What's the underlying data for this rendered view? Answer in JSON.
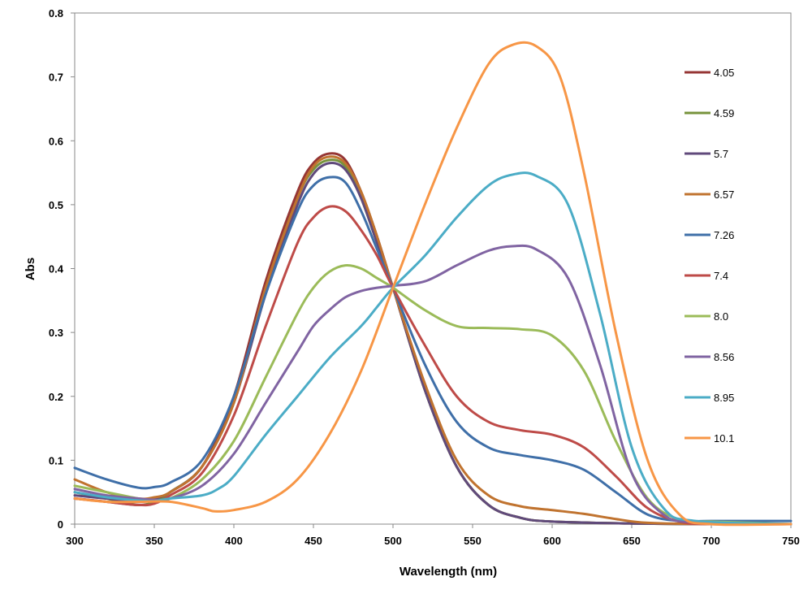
{
  "chart_data": {
    "type": "line",
    "xlabel": "Wavelength (nm)",
    "ylabel": "Abs",
    "xlim": [
      300,
      750
    ],
    "ylim": [
      0,
      0.8
    ],
    "x_ticks": [
      "300",
      "350",
      "400",
      "450",
      "500",
      "550",
      "600",
      "650",
      "700",
      "750"
    ],
    "y_ticks": [
      "0",
      "0.1",
      "0.2",
      "0.3",
      "0.4",
      "0.5",
      "0.6",
      "0.7",
      "0.8"
    ],
    "grid": false,
    "legend_position": "right",
    "series": [
      {
        "name": "4.05",
        "color": "#963634",
        "points": [
          [
            300,
            0.04
          ],
          [
            320,
            0.035
          ],
          [
            340,
            0.03
          ],
          [
            350,
            0.035
          ],
          [
            360,
            0.05
          ],
          [
            380,
            0.09
          ],
          [
            400,
            0.2
          ],
          [
            420,
            0.38
          ],
          [
            440,
            0.52
          ],
          [
            450,
            0.565
          ],
          [
            460,
            0.58
          ],
          [
            470,
            0.57
          ],
          [
            480,
            0.52
          ],
          [
            490,
            0.45
          ],
          [
            500,
            0.37
          ],
          [
            520,
            0.21
          ],
          [
            540,
            0.09
          ],
          [
            560,
            0.03
          ],
          [
            580,
            0.01
          ],
          [
            600,
            0.004
          ],
          [
            650,
            0.001
          ],
          [
            700,
            0.0
          ],
          [
            750,
            0.0
          ]
        ]
      },
      {
        "name": "4.59",
        "color": "#77933C",
        "points": [
          [
            300,
            0.05
          ],
          [
            320,
            0.04
          ],
          [
            340,
            0.03
          ],
          [
            350,
            0.035
          ],
          [
            360,
            0.05
          ],
          [
            380,
            0.09
          ],
          [
            400,
            0.19
          ],
          [
            420,
            0.37
          ],
          [
            440,
            0.51
          ],
          [
            450,
            0.555
          ],
          [
            460,
            0.57
          ],
          [
            470,
            0.56
          ],
          [
            480,
            0.51
          ],
          [
            490,
            0.44
          ],
          [
            500,
            0.37
          ],
          [
            520,
            0.21
          ],
          [
            540,
            0.09
          ],
          [
            560,
            0.03
          ],
          [
            580,
            0.01
          ],
          [
            600,
            0.004
          ],
          [
            650,
            0.001
          ],
          [
            700,
            0.0
          ],
          [
            750,
            0.0
          ]
        ]
      },
      {
        "name": "5.7",
        "color": "#604A7B",
        "points": [
          [
            300,
            0.045
          ],
          [
            320,
            0.04
          ],
          [
            340,
            0.035
          ],
          [
            350,
            0.04
          ],
          [
            360,
            0.05
          ],
          [
            380,
            0.09
          ],
          [
            400,
            0.19
          ],
          [
            420,
            0.36
          ],
          [
            440,
            0.5
          ],
          [
            450,
            0.548
          ],
          [
            460,
            0.565
          ],
          [
            470,
            0.555
          ],
          [
            480,
            0.51
          ],
          [
            490,
            0.44
          ],
          [
            500,
            0.37
          ],
          [
            520,
            0.21
          ],
          [
            540,
            0.09
          ],
          [
            560,
            0.03
          ],
          [
            580,
            0.01
          ],
          [
            600,
            0.004
          ],
          [
            650,
            0.001
          ],
          [
            700,
            0.0
          ],
          [
            750,
            0.0
          ]
        ]
      },
      {
        "name": "6.57",
        "color": "#C0732F",
        "points": [
          [
            300,
            0.07
          ],
          [
            320,
            0.05
          ],
          [
            340,
            0.04
          ],
          [
            350,
            0.042
          ],
          [
            360,
            0.05
          ],
          [
            380,
            0.09
          ],
          [
            400,
            0.19
          ],
          [
            420,
            0.37
          ],
          [
            440,
            0.51
          ],
          [
            450,
            0.56
          ],
          [
            460,
            0.575
          ],
          [
            470,
            0.565
          ],
          [
            480,
            0.52
          ],
          [
            490,
            0.45
          ],
          [
            500,
            0.37
          ],
          [
            520,
            0.22
          ],
          [
            540,
            0.1
          ],
          [
            560,
            0.045
          ],
          [
            580,
            0.028
          ],
          [
            600,
            0.022
          ],
          [
            620,
            0.016
          ],
          [
            640,
            0.008
          ],
          [
            660,
            0.002
          ],
          [
            700,
            0.0
          ],
          [
            750,
            0.0
          ]
        ]
      },
      {
        "name": "7.26",
        "color": "#3F6FA8",
        "points": [
          [
            300,
            0.088
          ],
          [
            320,
            0.07
          ],
          [
            340,
            0.057
          ],
          [
            350,
            0.058
          ],
          [
            360,
            0.065
          ],
          [
            380,
            0.1
          ],
          [
            400,
            0.2
          ],
          [
            420,
            0.36
          ],
          [
            440,
            0.49
          ],
          [
            450,
            0.53
          ],
          [
            460,
            0.543
          ],
          [
            470,
            0.535
          ],
          [
            480,
            0.49
          ],
          [
            490,
            0.43
          ],
          [
            500,
            0.37
          ],
          [
            520,
            0.25
          ],
          [
            540,
            0.16
          ],
          [
            560,
            0.12
          ],
          [
            580,
            0.108
          ],
          [
            600,
            0.1
          ],
          [
            620,
            0.085
          ],
          [
            640,
            0.05
          ],
          [
            660,
            0.015
          ],
          [
            680,
            0.005
          ],
          [
            700,
            0.005
          ],
          [
            750,
            0.005
          ]
        ]
      },
      {
        "name": "7.4",
        "color": "#BE4B48",
        "points": [
          [
            300,
            0.04
          ],
          [
            320,
            0.035
          ],
          [
            340,
            0.03
          ],
          [
            350,
            0.032
          ],
          [
            360,
            0.045
          ],
          [
            380,
            0.08
          ],
          [
            400,
            0.17
          ],
          [
            420,
            0.31
          ],
          [
            440,
            0.44
          ],
          [
            450,
            0.48
          ],
          [
            460,
            0.497
          ],
          [
            470,
            0.49
          ],
          [
            480,
            0.46
          ],
          [
            490,
            0.42
          ],
          [
            500,
            0.37
          ],
          [
            520,
            0.28
          ],
          [
            540,
            0.2
          ],
          [
            560,
            0.16
          ],
          [
            580,
            0.147
          ],
          [
            600,
            0.14
          ],
          [
            620,
            0.12
          ],
          [
            640,
            0.075
          ],
          [
            660,
            0.025
          ],
          [
            680,
            0.004
          ],
          [
            700,
            0.0
          ],
          [
            750,
            0.0
          ]
        ]
      },
      {
        "name": "8.0",
        "color": "#9BBB59",
        "points": [
          [
            300,
            0.06
          ],
          [
            320,
            0.05
          ],
          [
            340,
            0.04
          ],
          [
            350,
            0.037
          ],
          [
            360,
            0.04
          ],
          [
            380,
            0.07
          ],
          [
            400,
            0.13
          ],
          [
            420,
            0.23
          ],
          [
            440,
            0.33
          ],
          [
            450,
            0.37
          ],
          [
            460,
            0.395
          ],
          [
            470,
            0.405
          ],
          [
            480,
            0.4
          ],
          [
            490,
            0.385
          ],
          [
            500,
            0.37
          ],
          [
            520,
            0.335
          ],
          [
            540,
            0.31
          ],
          [
            560,
            0.307
          ],
          [
            580,
            0.305
          ],
          [
            600,
            0.295
          ],
          [
            620,
            0.24
          ],
          [
            640,
            0.13
          ],
          [
            660,
            0.04
          ],
          [
            680,
            0.007
          ],
          [
            700,
            0.004
          ],
          [
            750,
            0.0
          ]
        ]
      },
      {
        "name": "8.56",
        "color": "#8064A2",
        "points": [
          [
            300,
            0.055
          ],
          [
            320,
            0.045
          ],
          [
            340,
            0.04
          ],
          [
            350,
            0.038
          ],
          [
            360,
            0.04
          ],
          [
            380,
            0.06
          ],
          [
            400,
            0.11
          ],
          [
            420,
            0.19
          ],
          [
            440,
            0.27
          ],
          [
            450,
            0.31
          ],
          [
            460,
            0.335
          ],
          [
            470,
            0.355
          ],
          [
            480,
            0.365
          ],
          [
            490,
            0.37
          ],
          [
            500,
            0.373
          ],
          [
            520,
            0.38
          ],
          [
            540,
            0.405
          ],
          [
            560,
            0.428
          ],
          [
            575,
            0.435
          ],
          [
            590,
            0.43
          ],
          [
            610,
            0.385
          ],
          [
            630,
            0.25
          ],
          [
            650,
            0.08
          ],
          [
            670,
            0.015
          ],
          [
            690,
            0.003
          ],
          [
            750,
            0.0
          ]
        ]
      },
      {
        "name": "8.95",
        "color": "#4BACC6",
        "points": [
          [
            300,
            0.05
          ],
          [
            320,
            0.042
          ],
          [
            340,
            0.037
          ],
          [
            350,
            0.036
          ],
          [
            360,
            0.04
          ],
          [
            380,
            0.045
          ],
          [
            390,
            0.055
          ],
          [
            400,
            0.075
          ],
          [
            420,
            0.14
          ],
          [
            440,
            0.2
          ],
          [
            460,
            0.26
          ],
          [
            480,
            0.31
          ],
          [
            490,
            0.34
          ],
          [
            500,
            0.37
          ],
          [
            520,
            0.42
          ],
          [
            540,
            0.48
          ],
          [
            560,
            0.53
          ],
          [
            575,
            0.547
          ],
          [
            590,
            0.545
          ],
          [
            610,
            0.5
          ],
          [
            630,
            0.33
          ],
          [
            650,
            0.12
          ],
          [
            670,
            0.025
          ],
          [
            690,
            0.005
          ],
          [
            750,
            0.0
          ]
        ]
      },
      {
        "name": "10.1",
        "color": "#F79646",
        "points": [
          [
            300,
            0.04
          ],
          [
            320,
            0.035
          ],
          [
            340,
            0.035
          ],
          [
            360,
            0.035
          ],
          [
            380,
            0.025
          ],
          [
            388,
            0.02
          ],
          [
            400,
            0.022
          ],
          [
            420,
            0.035
          ],
          [
            440,
            0.07
          ],
          [
            460,
            0.14
          ],
          [
            480,
            0.24
          ],
          [
            500,
            0.37
          ],
          [
            520,
            0.5
          ],
          [
            540,
            0.62
          ],
          [
            560,
            0.72
          ],
          [
            575,
            0.75
          ],
          [
            590,
            0.748
          ],
          [
            605,
            0.7
          ],
          [
            620,
            0.55
          ],
          [
            640,
            0.3
          ],
          [
            660,
            0.1
          ],
          [
            680,
            0.015
          ],
          [
            700,
            0.0
          ],
          [
            750,
            0.0
          ]
        ]
      }
    ]
  }
}
